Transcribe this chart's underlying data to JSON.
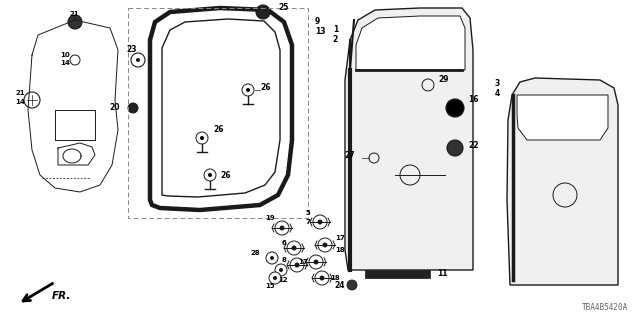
{
  "bg_color": "#ffffff",
  "diagram_code": "TBA4B5420A",
  "color_main": "#1a1a1a",
  "color_dashed": "#888888"
}
